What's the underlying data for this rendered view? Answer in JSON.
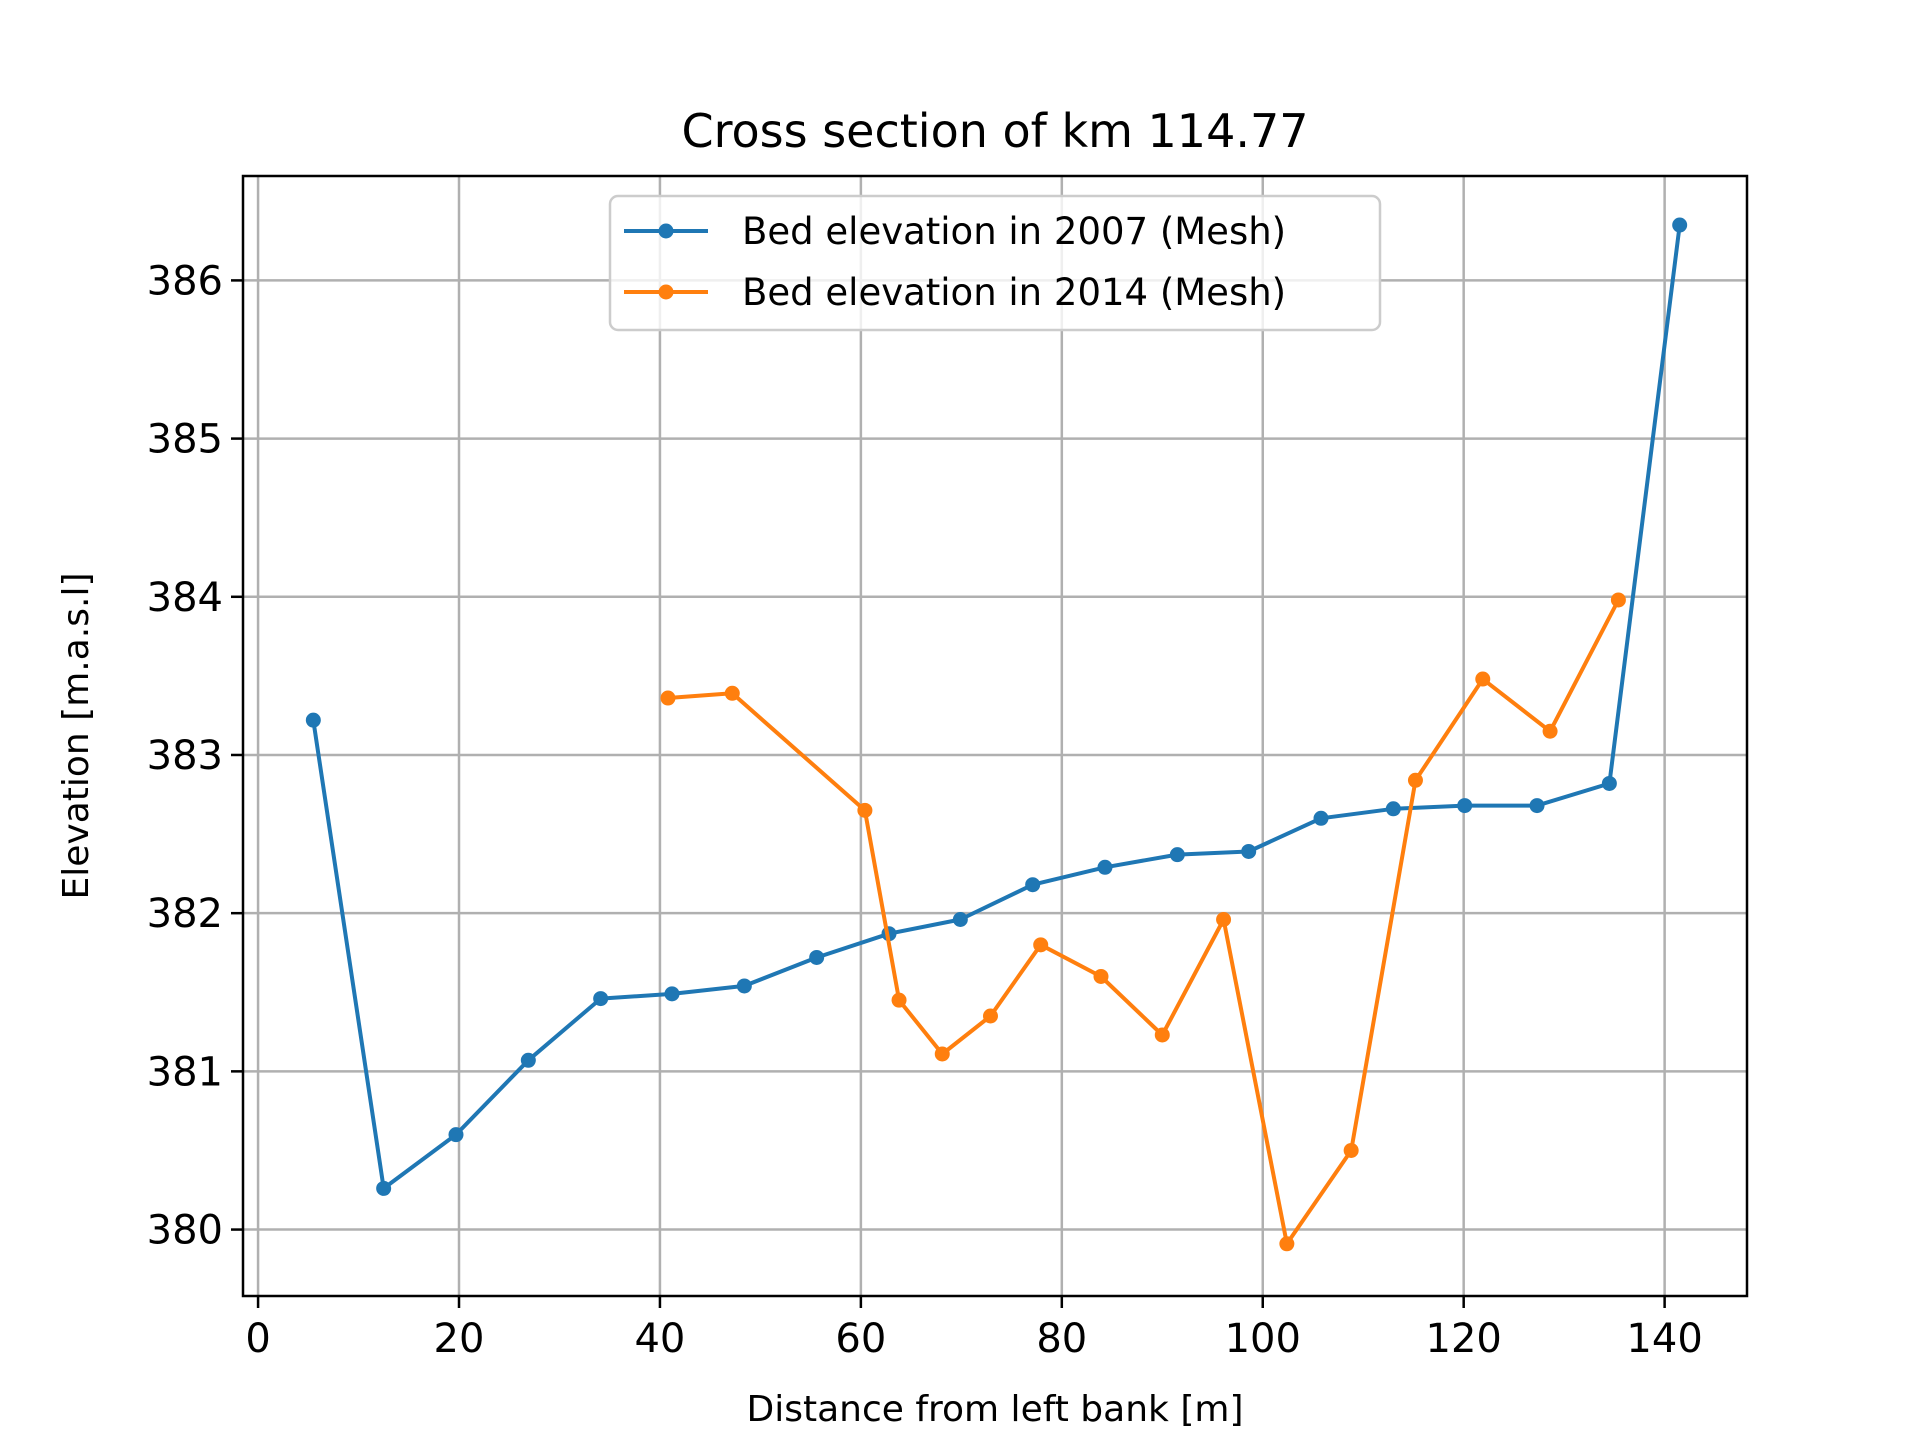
{
  "chart_data": {
    "type": "line",
    "title": "Cross section of km 114.77",
    "xlabel": "Distance from left bank [m]",
    "ylabel": "Elevation [m.a.s.l]",
    "xlim": [
      -1.5,
      148.2
    ],
    "ylim": [
      379.58,
      386.66
    ],
    "xticks": [
      0,
      20,
      40,
      60,
      80,
      100,
      120,
      140
    ],
    "yticks": [
      380,
      381,
      382,
      383,
      384,
      385,
      386
    ],
    "grid": true,
    "legend_position": "upper-center",
    "series": [
      {
        "name": "Bed elevation in 2007 (Mesh)",
        "color": "#1f77b4",
        "x": [
          5.5,
          12.5,
          19.7,
          26.9,
          34.1,
          41.2,
          48.4,
          55.6,
          62.8,
          69.9,
          77.1,
          84.3,
          91.5,
          98.6,
          105.8,
          113.0,
          120.1,
          127.3,
          134.5,
          141.5
        ],
        "y": [
          383.22,
          380.26,
          380.6,
          381.07,
          381.46,
          381.49,
          381.54,
          381.72,
          381.87,
          381.96,
          382.18,
          382.29,
          382.37,
          382.39,
          382.6,
          382.66,
          382.68,
          382.68,
          382.82,
          386.35
        ]
      },
      {
        "name": "Bed elevation in 2014 (Mesh)",
        "color": "#ff7f0e",
        "x": [
          40.8,
          47.2,
          60.4,
          63.8,
          68.1,
          72.9,
          77.9,
          83.9,
          90.0,
          96.1,
          102.4,
          108.8,
          115.2,
          121.9,
          128.6,
          135.4
        ],
        "y": [
          383.36,
          383.39,
          382.65,
          381.45,
          381.11,
          381.35,
          381.8,
          381.6,
          381.23,
          381.96,
          379.91,
          380.5,
          382.84,
          383.48,
          383.15,
          383.98
        ]
      }
    ]
  }
}
